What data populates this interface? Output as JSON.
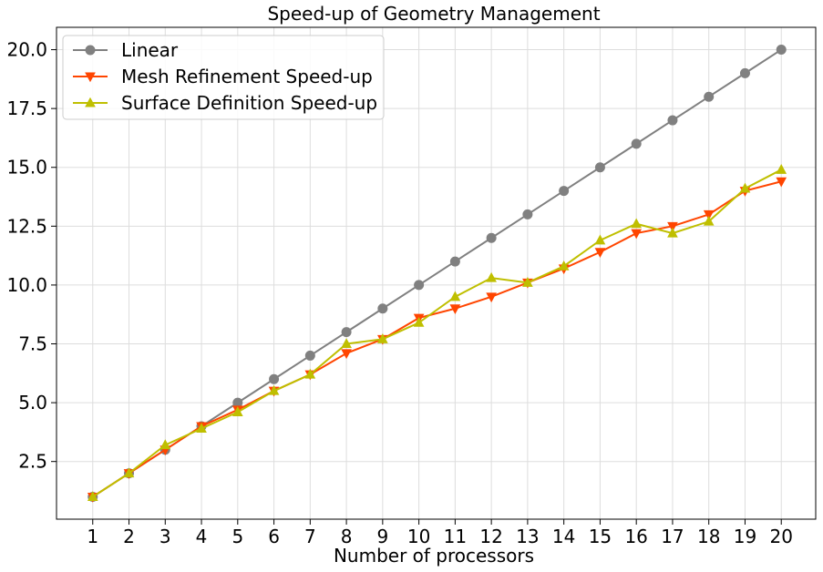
{
  "chart_data": {
    "type": "line",
    "title": "Speed-up of Geometry Management",
    "xlabel": "Number of processors",
    "ylabel": "",
    "x": [
      1,
      2,
      3,
      4,
      5,
      6,
      7,
      8,
      9,
      10,
      11,
      12,
      13,
      14,
      15,
      16,
      17,
      18,
      19,
      20
    ],
    "x_tick_labels": [
      "1",
      "2",
      "3",
      "4",
      "5",
      "6",
      "7",
      "8",
      "9",
      "10",
      "11",
      "12",
      "13",
      "14",
      "15",
      "16",
      "17",
      "18",
      "19",
      "20"
    ],
    "y_tick_labels": [
      "2.5",
      "5.0",
      "7.5",
      "10.0",
      "12.5",
      "15.0",
      "17.5",
      "20.0"
    ],
    "y_ticks": [
      2.5,
      5.0,
      7.5,
      10.0,
      12.5,
      15.0,
      17.5,
      20.0
    ],
    "xlim": [
      0.0,
      20.95
    ],
    "ylim": [
      0.05,
      20.95
    ],
    "grid": true,
    "legend_position": "top-left",
    "series": [
      {
        "name": "Linear",
        "color": "#808080",
        "marker": "circle",
        "values": [
          1,
          2,
          3,
          4,
          5,
          6,
          7,
          8,
          9,
          10,
          11,
          12,
          13,
          14,
          15,
          16,
          17,
          18,
          19,
          20
        ]
      },
      {
        "name": "Mesh Refinement Speed-up",
        "color": "#ff4500",
        "marker": "triangle-down",
        "values": [
          1.0,
          2.0,
          3.0,
          4.0,
          4.7,
          5.5,
          6.2,
          7.1,
          7.7,
          8.6,
          9.0,
          9.5,
          10.1,
          10.7,
          11.4,
          12.2,
          12.5,
          13.0,
          14.0,
          14.4
        ]
      },
      {
        "name": "Surface Definition Speed-up",
        "color": "#bfbf00",
        "marker": "triangle-up",
        "values": [
          1.0,
          2.0,
          3.2,
          3.9,
          4.6,
          5.5,
          6.2,
          7.5,
          7.7,
          8.4,
          9.5,
          10.3,
          10.1,
          10.8,
          11.9,
          12.6,
          12.2,
          12.7,
          14.1,
          14.9
        ]
      }
    ]
  }
}
